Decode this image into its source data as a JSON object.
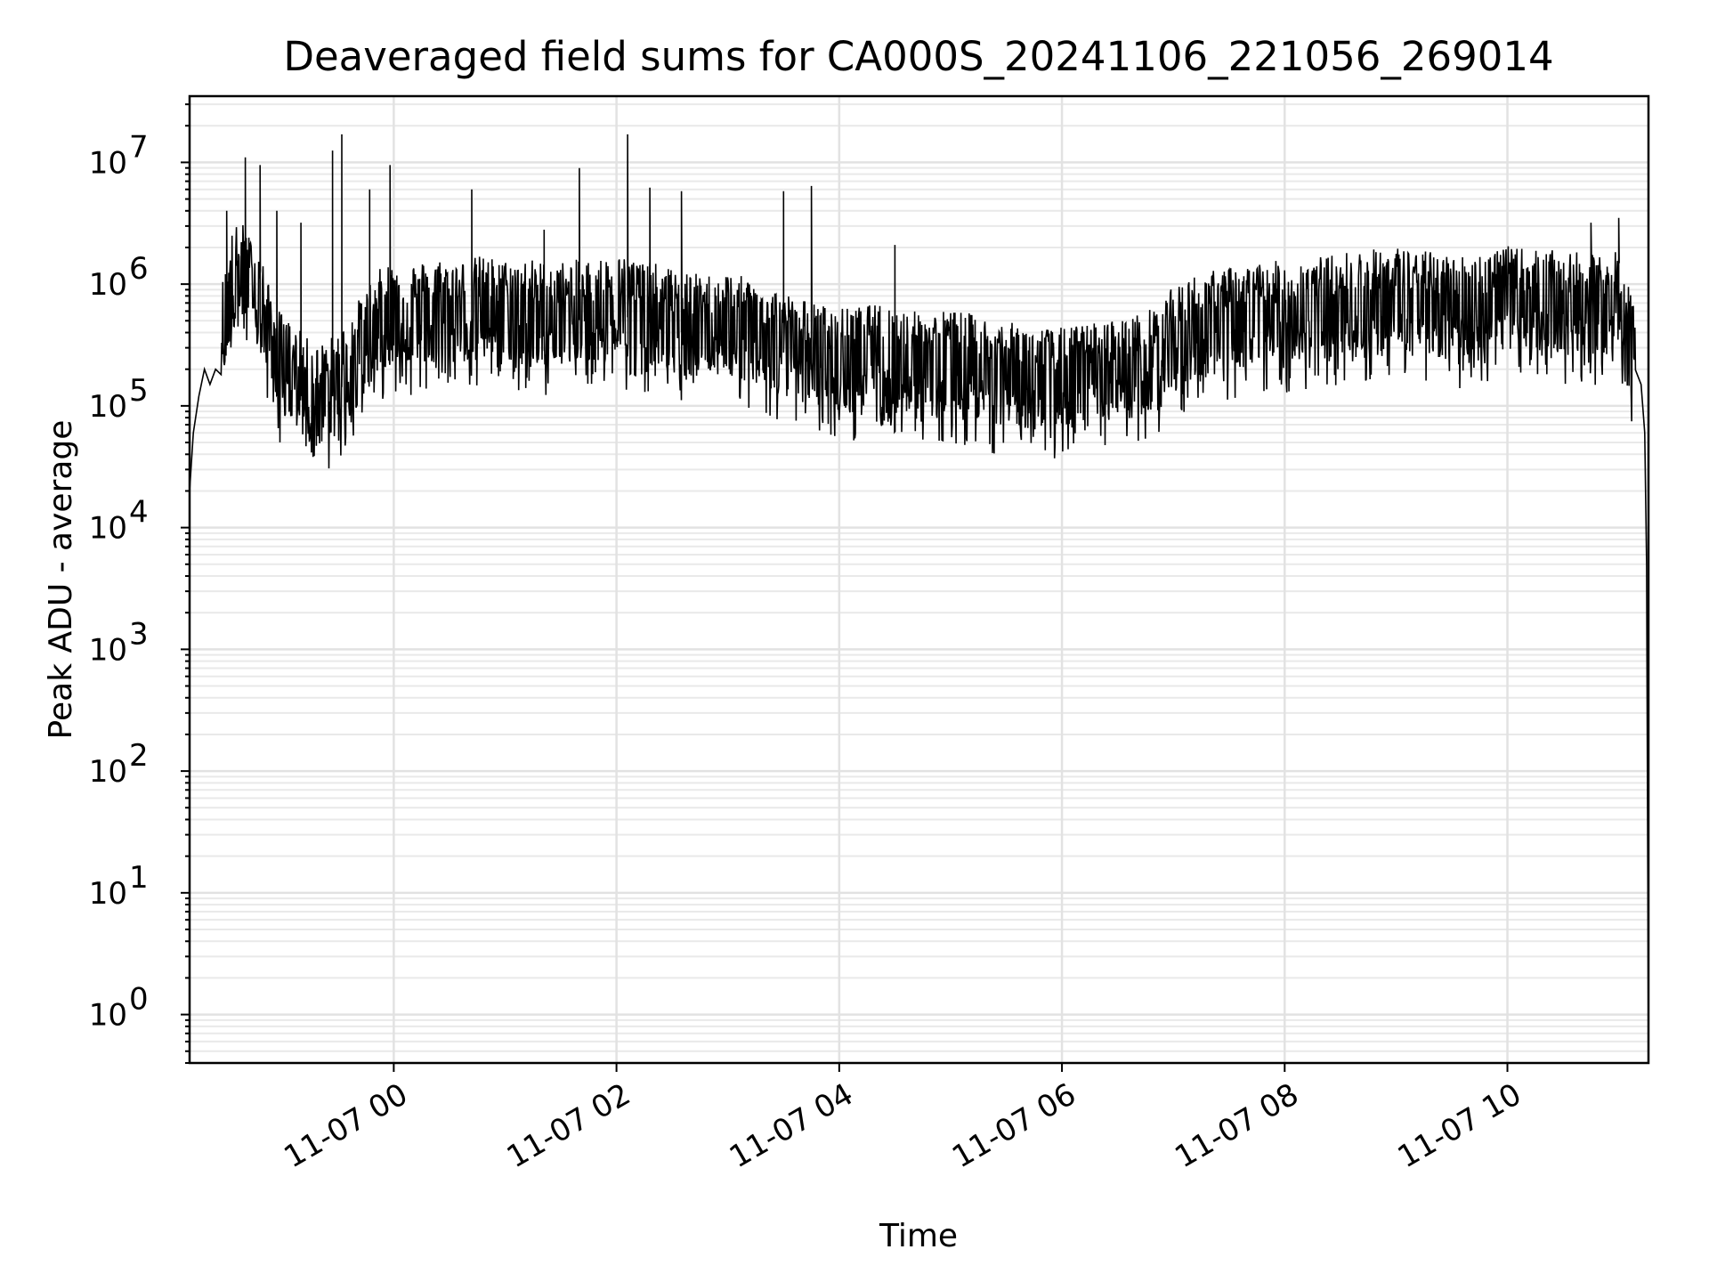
{
  "chart_data": {
    "type": "line",
    "title": "Deaveraged field sums for CA000S_20241106_221056_269014",
    "xlabel": "Time",
    "ylabel": "Peak ADU - average",
    "yscale": "log",
    "ylim": [
      0.4,
      35000000
    ],
    "xlim": [
      "2024-11-06 22:10",
      "2024-11-07 11:16"
    ],
    "grid": true,
    "line_color": "#000000",
    "x_ticks": [
      {
        "label": "11-07 00",
        "value": "2024-11-07 00:00"
      },
      {
        "label": "11-07 02",
        "value": "2024-11-07 02:00"
      },
      {
        "label": "11-07 04",
        "value": "2024-11-07 04:00"
      },
      {
        "label": "11-07 06",
        "value": "2024-11-07 06:00"
      },
      {
        "label": "11-07 08",
        "value": "2024-11-07 08:00"
      },
      {
        "label": "11-07 10",
        "value": "2024-11-07 10:00"
      }
    ],
    "y_ticks": [
      {
        "base": "10",
        "exp": "0",
        "value": 1
      },
      {
        "base": "10",
        "exp": "1",
        "value": 10
      },
      {
        "base": "10",
        "exp": "2",
        "value": 100
      },
      {
        "base": "10",
        "exp": "3",
        "value": 1000
      },
      {
        "base": "10",
        "exp": "4",
        "value": 10000
      },
      {
        "base": "10",
        "exp": "5",
        "value": 100000
      },
      {
        "base": "10",
        "exp": "6",
        "value": 1000000
      },
      {
        "base": "10",
        "exp": "7",
        "value": 10000000
      }
    ],
    "series": [
      {
        "x": [
          "2024-11-06 22:10",
          "2024-11-06 22:12",
          "2024-11-06 22:15",
          "2024-11-06 22:18",
          "2024-11-06 22:21",
          "2024-11-06 22:24",
          "2024-11-06 22:30",
          "2024-11-06 22:33",
          "2024-11-06 22:36",
          "2024-11-06 22:39",
          "2024-11-06 22:42",
          "2024-11-06 22:48",
          "2024-11-06 22:51",
          "2024-11-06 22:54",
          "2024-11-06 23:00",
          "2024-11-06 23:06",
          "2024-11-06 23:12",
          "2024-11-06 23:18",
          "2024-11-06 23:24",
          "2024-11-06 23:30",
          "2024-11-06 23:36",
          "2024-11-06 23:42",
          "2024-11-06 23:48",
          "2024-11-06 23:54",
          "2024-11-07 00:00",
          "2024-11-07 00:12",
          "2024-11-07 00:24",
          "2024-11-07 00:36",
          "2024-11-07 00:48",
          "2024-11-07 01:00",
          "2024-11-07 01:12",
          "2024-11-07 01:24",
          "2024-11-07 01:36",
          "2024-11-07 01:48",
          "2024-11-07 02:00",
          "2024-11-07 02:12",
          "2024-11-07 02:24",
          "2024-11-07 02:36",
          "2024-11-07 02:48",
          "2024-11-07 03:00",
          "2024-11-07 03:12",
          "2024-11-07 03:24",
          "2024-11-07 03:36",
          "2024-11-07 03:48",
          "2024-11-07 04:00",
          "2024-11-07 04:12",
          "2024-11-07 04:24",
          "2024-11-07 04:36",
          "2024-11-07 04:48",
          "2024-11-07 05:00",
          "2024-11-07 05:12",
          "2024-11-07 05:24",
          "2024-11-07 05:36",
          "2024-11-07 05:48",
          "2024-11-07 06:00",
          "2024-11-07 06:12",
          "2024-11-07 06:24",
          "2024-11-07 06:36",
          "2024-11-07 06:48",
          "2024-11-07 07:00",
          "2024-11-07 07:12",
          "2024-11-07 07:24",
          "2024-11-07 07:36",
          "2024-11-07 07:48",
          "2024-11-07 08:00",
          "2024-11-07 08:12",
          "2024-11-07 08:24",
          "2024-11-07 08:36",
          "2024-11-07 08:48",
          "2024-11-07 09:00",
          "2024-11-07 09:12",
          "2024-11-07 09:24",
          "2024-11-07 09:36",
          "2024-11-07 09:48",
          "2024-11-07 10:00",
          "2024-11-07 10:12",
          "2024-11-07 10:24",
          "2024-11-07 10:36",
          "2024-11-07 10:48",
          "2024-11-07 11:00",
          "2024-11-07 11:03",
          "2024-11-07 11:06",
          "2024-11-07 11:09",
          "2024-11-07 11:12",
          "2024-11-07 11:14",
          "2024-11-07 11:15",
          "2024-11-07 11:16"
        ],
        "y": [
          20000,
          60000,
          120000,
          200000,
          150000,
          200000,
          500000,
          900000,
          1000000,
          1000000,
          800000,
          600000,
          400000,
          250000,
          180000,
          150000,
          120000,
          100000,
          110000,
          130000,
          170000,
          250000,
          350000,
          450000,
          500000,
          480000,
          520000,
          500000,
          550000,
          500000,
          520000,
          480000,
          500000,
          520000,
          550000,
          520000,
          450000,
          400000,
          380000,
          400000,
          350000,
          300000,
          250000,
          220000,
          200000,
          210000,
          220000,
          200000,
          180000,
          200000,
          180000,
          160000,
          150000,
          140000,
          140000,
          150000,
          160000,
          170000,
          200000,
          300000,
          380000,
          420000,
          450000,
          480000,
          500000,
          520000,
          550000,
          600000,
          620000,
          650000,
          600000,
          580000,
          550000,
          600000,
          650000,
          620000,
          600000,
          580000,
          550000,
          600000,
          350000,
          300000,
          250000,
          150000,
          60000,
          5000,
          0.5
        ],
        "spikes": [
          {
            "x": "2024-11-06 22:30",
            "y": 4000000
          },
          {
            "x": "2024-11-06 22:40",
            "y": 11000000
          },
          {
            "x": "2024-11-06 22:48",
            "y": 9500000
          },
          {
            "x": "2024-11-06 22:57",
            "y": 4000000
          },
          {
            "x": "2024-11-06 23:10",
            "y": 3200000
          },
          {
            "x": "2024-11-06 23:27",
            "y": 12500000
          },
          {
            "x": "2024-11-06 23:32",
            "y": 17000000
          },
          {
            "x": "2024-11-06 23:47",
            "y": 6000000
          },
          {
            "x": "2024-11-06 23:58",
            "y": 9500000
          },
          {
            "x": "2024-11-07 00:42",
            "y": 6000000
          },
          {
            "x": "2024-11-07 01:21",
            "y": 2800000
          },
          {
            "x": "2024-11-07 01:40",
            "y": 9000000
          },
          {
            "x": "2024-11-07 02:06",
            "y": 17000000
          },
          {
            "x": "2024-11-07 02:18",
            "y": 6200000
          },
          {
            "x": "2024-11-07 02:35",
            "y": 5800000
          },
          {
            "x": "2024-11-07 03:30",
            "y": 5800000
          },
          {
            "x": "2024-11-07 03:45",
            "y": 6400000
          },
          {
            "x": "2024-11-07 04:30",
            "y": 2100000
          },
          {
            "x": "2024-11-07 10:45",
            "y": 3200000
          },
          {
            "x": "2024-11-07 11:00",
            "y": 3500000
          }
        ]
      }
    ]
  }
}
